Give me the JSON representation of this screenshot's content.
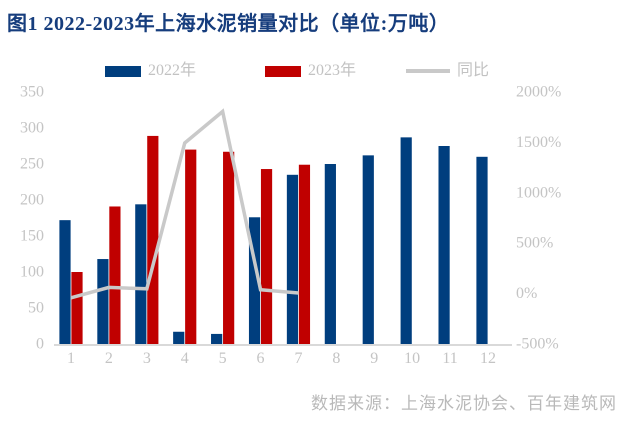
{
  "title": "图1 2022-2023年上海水泥销量对比（单位:万吨）",
  "footer": "数据来源：上海水泥协会、百年建筑网",
  "legend": {
    "items": [
      {
        "label": "2022年",
        "color": "#003e7e",
        "type": "bar"
      },
      {
        "label": "2023年",
        "color": "#c00000",
        "type": "bar"
      },
      {
        "label": "同比",
        "color": "#c9c9c9",
        "type": "line"
      }
    ]
  },
  "colors": {
    "title_text": "#163d7d",
    "bar_2022": "#003e7e",
    "bar_2023": "#c00000",
    "line_yoy": "#c9c9c9",
    "axis_text": "#c4c4c4",
    "axis_line": "#d9d9d9",
    "legend_text": "#c2c2c2",
    "footer_text": "#b9b9b9"
  },
  "chart_data": {
    "type": "bar",
    "subtype": "grouped bars with overlay line on secondary percent axis",
    "categories": [
      "1",
      "2",
      "3",
      "4",
      "5",
      "6",
      "7",
      "8",
      "9",
      "10",
      "11",
      "12"
    ],
    "series": [
      {
        "name": "2022年",
        "type": "bar",
        "axis": "left",
        "values": [
          172,
          118,
          194,
          17,
          14,
          176,
          235,
          250,
          262,
          287,
          275,
          260
        ]
      },
      {
        "name": "2023年",
        "type": "bar",
        "axis": "left",
        "values": [
          100,
          191,
          289,
          270,
          267,
          243,
          249,
          null,
          null,
          null,
          null,
          null
        ]
      },
      {
        "name": "同比",
        "type": "line",
        "axis": "right",
        "unit": "%",
        "values": [
          -42,
          62,
          48,
          1494,
          1807,
          38,
          6,
          null,
          null,
          null,
          null,
          null
        ]
      }
    ],
    "title": "图1 2022-2023年上海水泥销量对比（单位:万吨）",
    "xlabel": "",
    "ylabel_left": "万吨",
    "ylabel_right": "同比%",
    "left_axis": {
      "min": 0,
      "max": 350,
      "ticks": [
        "350",
        "300",
        "250",
        "200",
        "150",
        "100",
        "50",
        "0"
      ]
    },
    "right_axis": {
      "min": -500,
      "max": 2000,
      "ticks": [
        "2000%",
        "1500%",
        "1000%",
        "500%",
        "0%",
        "-500%"
      ]
    },
    "grid": false,
    "legend_position": "top"
  }
}
